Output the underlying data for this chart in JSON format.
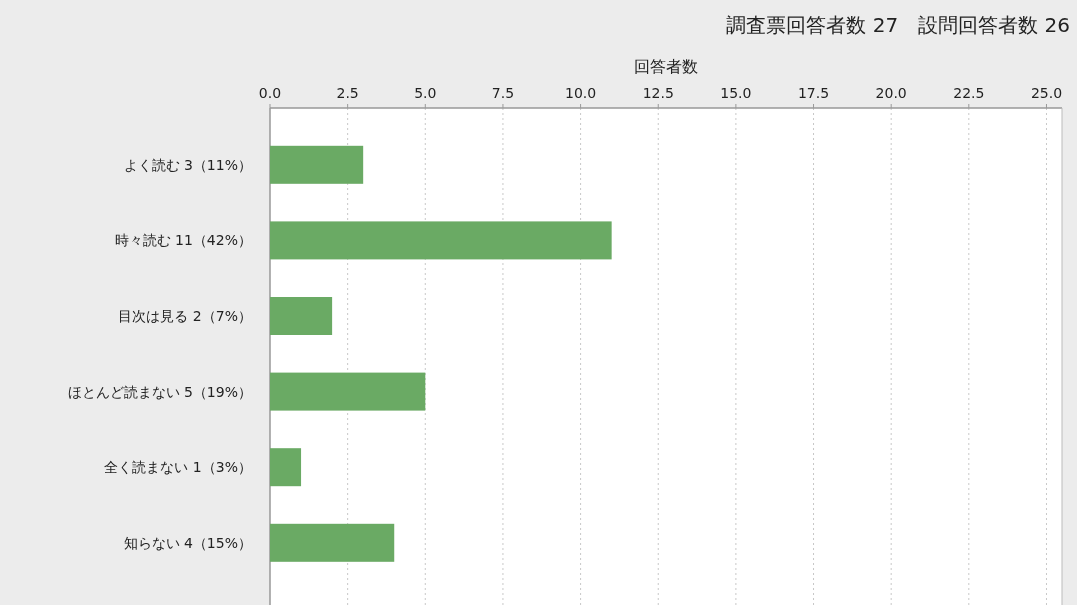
{
  "chart_data": {
    "type": "bar",
    "orientation": "horizontal",
    "title": "調査票回答者数 27　設問回答者数 26",
    "xlabel": "回答者数",
    "categories": [
      "よく読む 3（11%）",
      "時々読む 11（42%）",
      "目次は見る 2（7%）",
      "ほとんど読まない 5（19%）",
      "全く読まない 1（3%）",
      "知らない 4（15%）"
    ],
    "values": [
      3,
      11,
      2,
      5,
      1,
      4
    ],
    "color": "#6aaa64",
    "xlim": [
      0,
      25.5
    ],
    "xticks": [
      {
        "value": 0,
        "label": "0.0"
      },
      {
        "value": 2.5,
        "label": "2.5"
      },
      {
        "value": 5,
        "label": "5.0"
      },
      {
        "value": 7.5,
        "label": "7.5"
      },
      {
        "value": 10,
        "label": "10.0"
      },
      {
        "value": 12.5,
        "label": "12.5"
      },
      {
        "value": 15,
        "label": "15.0"
      },
      {
        "value": 17.5,
        "label": "17.5"
      },
      {
        "value": 20,
        "label": "20.0"
      },
      {
        "value": 22.5,
        "label": "22.5"
      },
      {
        "value": 25,
        "label": "25.0"
      }
    ],
    "grid": "x"
  }
}
